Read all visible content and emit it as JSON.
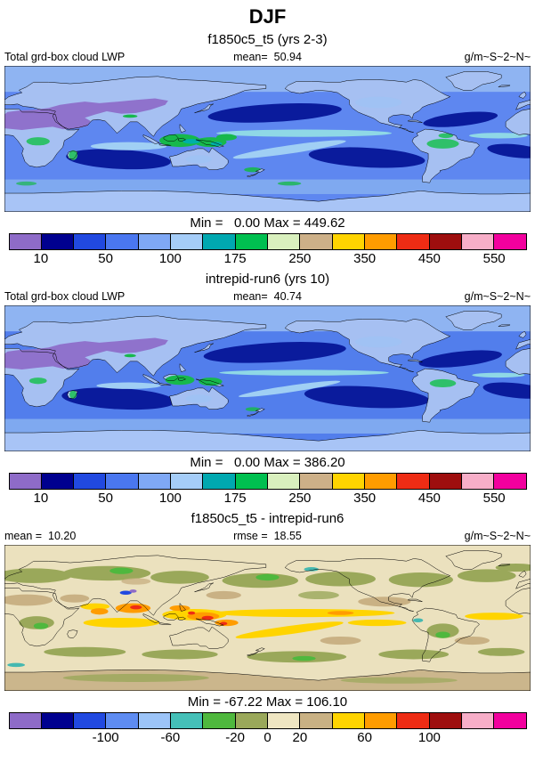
{
  "title": "DJF",
  "panels": [
    {
      "subtitle": "f1850c5_t5 (yrs 2-3)",
      "meta": {
        "left": "Total grd-box cloud LWP",
        "center": "mean=  50.94",
        "right": "g/m~S~2~N~"
      },
      "minmax": "Min =   0.00 Max = 449.62",
      "colorbar": {
        "colors": [
          "#8E6BC8",
          "#00008F",
          "#2149E0",
          "#4A77F0",
          "#7FA8F5",
          "#A5CDF8",
          "#00A8B0",
          "#00C050",
          "#D9F0BE",
          "#CDB088",
          "#FFD400",
          "#FF9C00",
          "#EE2C14",
          "#9E0E0E",
          "#F7AEC8",
          "#F2009E"
        ],
        "labels": [
          "10",
          "50",
          "100",
          "175",
          "250",
          "350",
          "450",
          "550"
        ],
        "positions": [
          0.0625,
          0.1875,
          0.3125,
          0.4375,
          0.5625,
          0.6875,
          0.8125,
          0.9375
        ]
      }
    },
    {
      "subtitle": "intrepid-run6 (yrs 10)",
      "meta": {
        "left": "Total grd-box cloud LWP",
        "center": "mean=  40.74",
        "right": "g/m~S~2~N~"
      },
      "minmax": "Min =   0.00 Max = 386.20",
      "colorbar": {
        "colors": [
          "#8E6BC8",
          "#00008F",
          "#2149E0",
          "#4A77F0",
          "#7FA8F5",
          "#A5CDF8",
          "#00A8B0",
          "#00C050",
          "#D9F0BE",
          "#CDB088",
          "#FFD400",
          "#FF9C00",
          "#EE2C14",
          "#9E0E0E",
          "#F7AEC8",
          "#F2009E"
        ],
        "labels": [
          "10",
          "50",
          "100",
          "175",
          "250",
          "350",
          "450",
          "550"
        ],
        "positions": [
          0.0625,
          0.1875,
          0.3125,
          0.4375,
          0.5625,
          0.6875,
          0.8125,
          0.9375
        ]
      }
    },
    {
      "subtitle": "f1850c5_t5 - intrepid-run6",
      "meta": {
        "left": "mean =  10.20",
        "center": "rmse =  18.55",
        "right": "g/m~S~2~N~"
      },
      "minmax": "Min = -67.22 Max = 106.10",
      "colorbar": {
        "colors": [
          "#8E6BC8",
          "#00008F",
          "#2149E0",
          "#5E8CF2",
          "#9CC4F8",
          "#45C0B8",
          "#4FB83E",
          "#9AA85A",
          "#EFE6C2",
          "#C9B184",
          "#FFD400",
          "#FF9C00",
          "#EE2C14",
          "#9E0E0E",
          "#F7AEC8",
          "#F2009E"
        ],
        "labels": [
          "-100",
          "-60",
          "-20",
          "0",
          "20",
          "60",
          "100"
        ],
        "positions": [
          0.1875,
          0.3125,
          0.4375,
          0.5,
          0.5625,
          0.6875,
          0.8125
        ]
      }
    }
  ],
  "chart_data": [
    {
      "type": "heatmap",
      "title": "f1850c5_t5 (yrs 2-3)",
      "season": "DJF",
      "variable": "Total grd-box cloud LWP",
      "units": "g/m~S~2~N~",
      "mean": 50.94,
      "min": 0.0,
      "max": 449.62,
      "colorbar_ticks": [
        10,
        50,
        100,
        175,
        250,
        350,
        450,
        550
      ],
      "colorbar_colors": [
        "#8E6BC8",
        "#00008F",
        "#2149E0",
        "#4A77F0",
        "#7FA8F5",
        "#A5CDF8",
        "#00A8B0",
        "#00C050",
        "#D9F0BE",
        "#CDB088",
        "#FFD400",
        "#FF9C00",
        "#EE2C14",
        "#9E0E0E",
        "#F7AEC8",
        "#F2009E"
      ],
      "layout": "global latitude-longitude filled-contour map, longitude 0-360"
    },
    {
      "type": "heatmap",
      "title": "intrepid-run6 (yrs 10)",
      "season": "DJF",
      "variable": "Total grd-box cloud LWP",
      "units": "g/m~S~2~N~",
      "mean": 40.74,
      "min": 0.0,
      "max": 386.2,
      "colorbar_ticks": [
        10,
        50,
        100,
        175,
        250,
        350,
        450,
        550
      ],
      "colorbar_colors": [
        "#8E6BC8",
        "#00008F",
        "#2149E0",
        "#4A77F0",
        "#7FA8F5",
        "#A5CDF8",
        "#00A8B0",
        "#00C050",
        "#D9F0BE",
        "#CDB088",
        "#FFD400",
        "#FF9C00",
        "#EE2C14",
        "#9E0E0E",
        "#F7AEC8",
        "#F2009E"
      ],
      "layout": "global latitude-longitude filled-contour map, longitude 0-360"
    },
    {
      "type": "heatmap",
      "title": "f1850c5_t5 - intrepid-run6",
      "season": "DJF",
      "variable": "Total grd-box cloud LWP difference",
      "units": "g/m~S~2~N~",
      "mean": 10.2,
      "rmse": 18.55,
      "min": -67.22,
      "max": 106.1,
      "colorbar_ticks": [
        -100,
        -60,
        -20,
        0,
        20,
        60,
        100
      ],
      "colorbar_colors": [
        "#8E6BC8",
        "#00008F",
        "#2149E0",
        "#5E8CF2",
        "#9CC4F8",
        "#45C0B8",
        "#4FB83E",
        "#9AA85A",
        "#EFE6C2",
        "#C9B184",
        "#FFD400",
        "#FF9C00",
        "#EE2C14",
        "#9E0E0E",
        "#F7AEC8",
        "#F2009E"
      ],
      "layout": "global latitude-longitude filled-contour difference map, longitude 0-360"
    }
  ]
}
